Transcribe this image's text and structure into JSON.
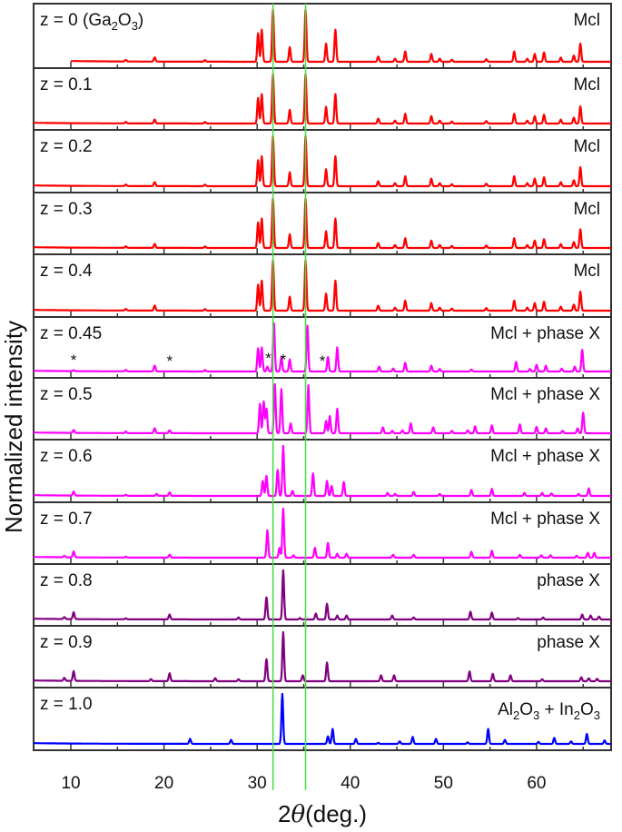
{
  "chart_data": {
    "type": "line",
    "title": "",
    "xlabel": "2θ (deg.)",
    "xlabel_parts": {
      "prefix": "2",
      "theta": "θ",
      "suffix": "(deg.)"
    },
    "ylabel": "Normalized intensity",
    "xlim": [
      6,
      68
    ],
    "xticks": [
      10,
      20,
      30,
      40,
      50,
      60
    ],
    "xticks_minor": [
      15,
      25,
      35,
      45,
      55,
      65
    ],
    "reference_lines": {
      "x": [
        31.7,
        35.2
      ],
      "color": "#44dd44"
    },
    "grid": false,
    "legend": "none",
    "stacked_panels": true,
    "series": [
      {
        "name": "z = 0 (Ga2O3)",
        "label_main": "z = 0 (Ga",
        "label_sub1": "2",
        "label_mid": "O",
        "label_sub2": "3",
        "label_end": ")",
        "phase": "Mcl",
        "color": "#ff0000",
        "x_start": 10.0,
        "peaks": [
          [
            15.9,
            0.03
          ],
          [
            19.0,
            0.08
          ],
          [
            24.4,
            0.03
          ],
          [
            30.1,
            0.55
          ],
          [
            30.5,
            0.62
          ],
          [
            31.7,
            1.0
          ],
          [
            33.5,
            0.28
          ],
          [
            35.2,
            1.0
          ],
          [
            37.4,
            0.35
          ],
          [
            38.4,
            0.62
          ],
          [
            43.0,
            0.1
          ],
          [
            44.8,
            0.06
          ],
          [
            45.9,
            0.2
          ],
          [
            48.7,
            0.15
          ],
          [
            49.6,
            0.06
          ],
          [
            50.9,
            0.04
          ],
          [
            54.6,
            0.05
          ],
          [
            57.6,
            0.2
          ],
          [
            59.0,
            0.06
          ],
          [
            59.8,
            0.15
          ],
          [
            60.8,
            0.18
          ],
          [
            62.6,
            0.08
          ],
          [
            64.0,
            0.12
          ],
          [
            64.7,
            0.35
          ]
        ]
      },
      {
        "name": "z = 0.1",
        "label_main": "z = 0.1",
        "phase": "Mcl",
        "color": "#ff0000",
        "x_start": 6.0,
        "peaks": [
          [
            15.9,
            0.03
          ],
          [
            19.0,
            0.08
          ],
          [
            24.4,
            0.03
          ],
          [
            30.1,
            0.52
          ],
          [
            30.5,
            0.6
          ],
          [
            31.7,
            1.0
          ],
          [
            33.5,
            0.28
          ],
          [
            35.2,
            1.0
          ],
          [
            37.4,
            0.34
          ],
          [
            38.4,
            0.6
          ],
          [
            43.0,
            0.1
          ],
          [
            44.8,
            0.06
          ],
          [
            45.9,
            0.2
          ],
          [
            48.7,
            0.15
          ],
          [
            49.6,
            0.06
          ],
          [
            50.9,
            0.04
          ],
          [
            54.6,
            0.05
          ],
          [
            57.6,
            0.2
          ],
          [
            59.0,
            0.06
          ],
          [
            59.8,
            0.15
          ],
          [
            60.8,
            0.18
          ],
          [
            62.6,
            0.08
          ],
          [
            64.0,
            0.12
          ],
          [
            64.7,
            0.35
          ]
        ]
      },
      {
        "name": "z = 0.2",
        "label_main": "z = 0.2",
        "phase": "Mcl",
        "color": "#ff0000",
        "x_start": 6.0,
        "peaks": [
          [
            15.9,
            0.03
          ],
          [
            19.0,
            0.08
          ],
          [
            24.4,
            0.03
          ],
          [
            30.1,
            0.52
          ],
          [
            30.5,
            0.6
          ],
          [
            31.7,
            1.0
          ],
          [
            33.5,
            0.28
          ],
          [
            35.2,
            1.0
          ],
          [
            37.4,
            0.34
          ],
          [
            38.4,
            0.6
          ],
          [
            43.0,
            0.1
          ],
          [
            44.8,
            0.06
          ],
          [
            45.9,
            0.2
          ],
          [
            48.7,
            0.15
          ],
          [
            49.6,
            0.06
          ],
          [
            50.9,
            0.04
          ],
          [
            54.6,
            0.05
          ],
          [
            57.6,
            0.2
          ],
          [
            59.0,
            0.06
          ],
          [
            59.8,
            0.15
          ],
          [
            60.8,
            0.18
          ],
          [
            62.6,
            0.08
          ],
          [
            64.0,
            0.12
          ],
          [
            64.7,
            0.38
          ]
        ]
      },
      {
        "name": "z = 0.3",
        "label_main": "z = 0.3",
        "phase": "Mcl",
        "color": "#ff0000",
        "x_start": 6.0,
        "peaks": [
          [
            15.9,
            0.03
          ],
          [
            19.0,
            0.08
          ],
          [
            24.4,
            0.03
          ],
          [
            30.1,
            0.52
          ],
          [
            30.5,
            0.6
          ],
          [
            31.7,
            1.0
          ],
          [
            33.5,
            0.28
          ],
          [
            35.2,
            1.0
          ],
          [
            37.4,
            0.34
          ],
          [
            38.4,
            0.6
          ],
          [
            43.0,
            0.1
          ],
          [
            44.8,
            0.06
          ],
          [
            45.9,
            0.2
          ],
          [
            48.7,
            0.15
          ],
          [
            49.6,
            0.06
          ],
          [
            50.9,
            0.04
          ],
          [
            54.6,
            0.05
          ],
          [
            57.6,
            0.2
          ],
          [
            59.0,
            0.06
          ],
          [
            59.8,
            0.15
          ],
          [
            60.8,
            0.18
          ],
          [
            62.6,
            0.08
          ],
          [
            64.0,
            0.12
          ],
          [
            64.7,
            0.38
          ]
        ]
      },
      {
        "name": "z = 0.4",
        "label_main": "z = 0.4",
        "phase": "Mcl",
        "color": "#ff0000",
        "x_start": 6.0,
        "peaks": [
          [
            15.9,
            0.03
          ],
          [
            19.0,
            0.1
          ],
          [
            24.4,
            0.03
          ],
          [
            30.1,
            0.52
          ],
          [
            30.5,
            0.6
          ],
          [
            31.7,
            1.0
          ],
          [
            33.5,
            0.28
          ],
          [
            35.2,
            1.0
          ],
          [
            37.4,
            0.34
          ],
          [
            38.4,
            0.6
          ],
          [
            43.0,
            0.1
          ],
          [
            44.8,
            0.06
          ],
          [
            45.9,
            0.2
          ],
          [
            48.7,
            0.15
          ],
          [
            49.6,
            0.06
          ],
          [
            50.9,
            0.04
          ],
          [
            54.6,
            0.05
          ],
          [
            57.6,
            0.2
          ],
          [
            59.0,
            0.06
          ],
          [
            59.8,
            0.15
          ],
          [
            60.8,
            0.18
          ],
          [
            62.6,
            0.08
          ],
          [
            64.0,
            0.12
          ],
          [
            64.7,
            0.38
          ]
        ]
      },
      {
        "name": "z = 0.45",
        "label_main": "z = 0.45",
        "phase": "Mcl + phase X",
        "color": "#ff00ff",
        "x_start": 6.0,
        "stars_at": [
          10.3,
          20.6,
          31.2,
          32.8,
          37.0
        ],
        "peaks": [
          [
            10.3,
            0.02
          ],
          [
            15.9,
            0.03
          ],
          [
            19.0,
            0.12
          ],
          [
            24.4,
            0.03
          ],
          [
            30.1,
            0.48
          ],
          [
            30.5,
            0.5
          ],
          [
            31.1,
            0.1
          ],
          [
            31.8,
            1.0
          ],
          [
            32.6,
            0.3
          ],
          [
            33.5,
            0.25
          ],
          [
            35.4,
            0.95
          ],
          [
            37.6,
            0.3
          ],
          [
            38.6,
            0.5
          ],
          [
            43.1,
            0.1
          ],
          [
            44.6,
            0.06
          ],
          [
            45.9,
            0.18
          ],
          [
            48.7,
            0.12
          ],
          [
            49.6,
            0.05
          ],
          [
            53.0,
            0.04
          ],
          [
            57.8,
            0.2
          ],
          [
            59.3,
            0.05
          ],
          [
            60.0,
            0.14
          ],
          [
            61.0,
            0.12
          ],
          [
            62.7,
            0.06
          ],
          [
            64.1,
            0.1
          ],
          [
            64.9,
            0.45
          ]
        ]
      },
      {
        "name": "z = 0.5",
        "label_main": "z = 0.5",
        "phase": "Mcl + phase X",
        "color": "#ff00ff",
        "x_start": 6.0,
        "peaks": [
          [
            10.3,
            0.06
          ],
          [
            15.9,
            0.03
          ],
          [
            19.0,
            0.1
          ],
          [
            20.6,
            0.06
          ],
          [
            30.3,
            0.6
          ],
          [
            30.7,
            0.65
          ],
          [
            31.0,
            0.5
          ],
          [
            31.9,
            1.0
          ],
          [
            32.6,
            0.9
          ],
          [
            33.6,
            0.2
          ],
          [
            35.5,
            0.98
          ],
          [
            37.4,
            0.25
          ],
          [
            37.8,
            0.35
          ],
          [
            38.6,
            0.5
          ],
          [
            43.5,
            0.12
          ],
          [
            44.5,
            0.05
          ],
          [
            45.6,
            0.06
          ],
          [
            46.5,
            0.2
          ],
          [
            48.9,
            0.12
          ],
          [
            50.9,
            0.05
          ],
          [
            52.6,
            0.06
          ],
          [
            53.4,
            0.14
          ],
          [
            55.2,
            0.16
          ],
          [
            58.2,
            0.18
          ],
          [
            60.0,
            0.13
          ],
          [
            61.0,
            0.1
          ],
          [
            62.8,
            0.05
          ],
          [
            64.4,
            0.1
          ],
          [
            65.0,
            0.42
          ]
        ]
      },
      {
        "name": "z = 0.6",
        "label_main": "z = 0.6",
        "phase": "Mcl + phase X",
        "color": "#ff00ff",
        "x_start": 6.0,
        "peaks": [
          [
            10.3,
            0.08
          ],
          [
            15.9,
            0.02
          ],
          [
            19.2,
            0.04
          ],
          [
            20.6,
            0.07
          ],
          [
            30.6,
            0.3
          ],
          [
            31.0,
            0.4
          ],
          [
            32.2,
            0.52
          ],
          [
            32.8,
            1.0
          ],
          [
            33.8,
            0.1
          ],
          [
            36.0,
            0.45
          ],
          [
            37.5,
            0.3
          ],
          [
            38.0,
            0.2
          ],
          [
            39.3,
            0.28
          ],
          [
            44.0,
            0.06
          ],
          [
            44.8,
            0.04
          ],
          [
            46.8,
            0.08
          ],
          [
            49.6,
            0.04
          ],
          [
            53.0,
            0.12
          ],
          [
            55.2,
            0.14
          ],
          [
            58.7,
            0.06
          ],
          [
            60.6,
            0.06
          ],
          [
            61.6,
            0.05
          ],
          [
            64.5,
            0.04
          ],
          [
            65.6,
            0.15
          ]
        ]
      },
      {
        "name": "z = 0.7",
        "label_main": "z = 0.7",
        "phase": "Mcl + phase X",
        "color": "#ff00ff",
        "x_start": 6.0,
        "peaks": [
          [
            9.3,
            0.03
          ],
          [
            10.3,
            0.12
          ],
          [
            15.9,
            0.02
          ],
          [
            20.6,
            0.06
          ],
          [
            31.1,
            0.56
          ],
          [
            32.4,
            0.2
          ],
          [
            32.8,
            1.0
          ],
          [
            33.9,
            0.05
          ],
          [
            36.2,
            0.2
          ],
          [
            37.6,
            0.3
          ],
          [
            38.6,
            0.08
          ],
          [
            39.6,
            0.08
          ],
          [
            44.6,
            0.06
          ],
          [
            46.8,
            0.06
          ],
          [
            53.0,
            0.12
          ],
          [
            55.2,
            0.14
          ],
          [
            58.2,
            0.06
          ],
          [
            60.5,
            0.05
          ],
          [
            61.5,
            0.05
          ],
          [
            64.3,
            0.04
          ],
          [
            65.5,
            0.1
          ],
          [
            66.2,
            0.1
          ]
        ]
      },
      {
        "name": "z = 0.8",
        "label_main": "z = 0.8",
        "phase": "phase X",
        "color": "#800080",
        "x_start": 6.0,
        "peaks": [
          [
            9.3,
            0.04
          ],
          [
            10.3,
            0.14
          ],
          [
            15.9,
            0.02
          ],
          [
            20.6,
            0.1
          ],
          [
            28.0,
            0.04
          ],
          [
            31.0,
            0.45
          ],
          [
            32.8,
            1.0
          ],
          [
            34.6,
            0.03
          ],
          [
            36.3,
            0.12
          ],
          [
            37.5,
            0.32
          ],
          [
            38.6,
            0.08
          ],
          [
            39.6,
            0.08
          ],
          [
            44.5,
            0.08
          ],
          [
            46.8,
            0.04
          ],
          [
            52.9,
            0.16
          ],
          [
            55.2,
            0.14
          ],
          [
            58.0,
            0.03
          ],
          [
            60.7,
            0.04
          ],
          [
            64.9,
            0.1
          ],
          [
            65.8,
            0.08
          ],
          [
            66.7,
            0.06
          ]
        ]
      },
      {
        "name": "z = 0.9",
        "label_main": "z = 0.9",
        "phase": "phase X",
        "color": "#800080",
        "x_start": 6.0,
        "peaks": [
          [
            9.3,
            0.06
          ],
          [
            10.3,
            0.2
          ],
          [
            18.6,
            0.04
          ],
          [
            20.6,
            0.16
          ],
          [
            25.5,
            0.06
          ],
          [
            28.0,
            0.04
          ],
          [
            31.0,
            0.45
          ],
          [
            32.8,
            1.0
          ],
          [
            34.9,
            0.12
          ],
          [
            37.5,
            0.38
          ],
          [
            43.3,
            0.12
          ],
          [
            44.7,
            0.12
          ],
          [
            52.8,
            0.2
          ],
          [
            55.3,
            0.15
          ],
          [
            57.2,
            0.12
          ],
          [
            60.6,
            0.04
          ],
          [
            64.8,
            0.08
          ],
          [
            65.6,
            0.06
          ],
          [
            66.5,
            0.05
          ]
        ]
      },
      {
        "name": "z = 1.0",
        "label_main": "z = 1.0",
        "phase": "Al2O3 + In2O3",
        "phase_parts": [
          "Al",
          "2",
          "O",
          "3",
          " + In",
          "2",
          "O",
          "3"
        ],
        "color": "#0000ff",
        "x_start": 6.0,
        "peaks": [
          [
            22.8,
            0.1
          ],
          [
            27.2,
            0.08
          ],
          [
            32.7,
            1.0
          ],
          [
            37.6,
            0.15
          ],
          [
            38.1,
            0.3
          ],
          [
            40.6,
            0.1
          ],
          [
            43.0,
            0.02
          ],
          [
            45.3,
            0.05
          ],
          [
            46.7,
            0.14
          ],
          [
            49.2,
            0.1
          ],
          [
            52.6,
            0.03
          ],
          [
            54.8,
            0.3
          ],
          [
            56.6,
            0.08
          ],
          [
            60.2,
            0.04
          ],
          [
            61.9,
            0.12
          ],
          [
            63.7,
            0.05
          ],
          [
            65.4,
            0.2
          ],
          [
            67.3,
            0.07
          ]
        ]
      }
    ]
  }
}
